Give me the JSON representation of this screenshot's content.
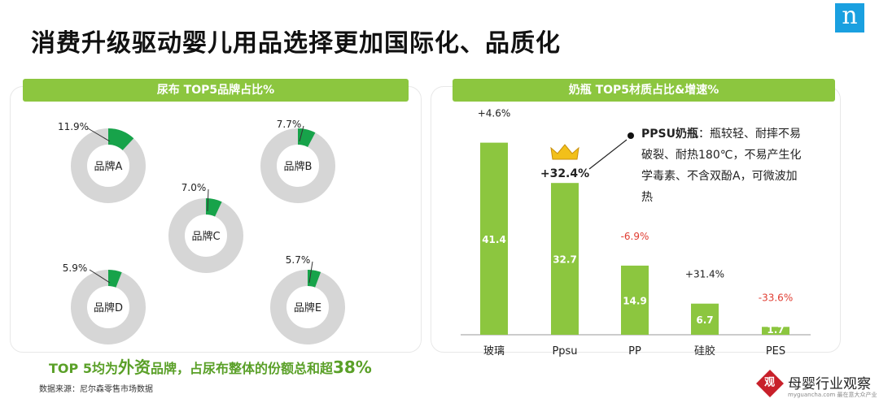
{
  "page": {
    "title": "消费升级驱动婴儿用品选择更加国际化、品质化",
    "logo_glyph": "n",
    "source": "数据来源：尼尔森零售市场数据",
    "footer_note": {
      "prefix": "TOP 5均为",
      "emph": "外资",
      "middle": "品牌，占尿布整体的份额总和超",
      "value": "38%"
    },
    "watermark": {
      "icon": "观",
      "text": "母婴行业观察",
      "sub": "myguancha.com  最在意大众产业"
    }
  },
  "callout": {
    "title": "PPSU奶瓶",
    "text": "：瓶较轻、耐摔不易破裂、耐热180℃，不易产生化学毒素、不含双酚A，可微波加热"
  },
  "colors": {
    "green": "#8cc63f",
    "dark_green": "#17a34a",
    "ring_gray": "#d6d6d6",
    "red": "#e03c31"
  },
  "chart_data": [
    {
      "type": "pie",
      "title": "尿布 TOP5品牌占比%",
      "series": [
        {
          "name": "品牌A",
          "value": 11.9,
          "label": "11.9%"
        },
        {
          "name": "品牌B",
          "value": 7.7,
          "label": "7.7%"
        },
        {
          "name": "品牌C",
          "value": 7.0,
          "label": "7.0%"
        },
        {
          "name": "品牌D",
          "value": 5.9,
          "label": "5.9%"
        },
        {
          "name": "品牌E",
          "value": 5.7,
          "label": "5.7%"
        }
      ]
    },
    {
      "type": "bar",
      "title": "奶瓶 TOP5材质占比&增速%",
      "categories": [
        "玻璃",
        "Ppsu",
        "PP",
        "硅胶",
        "PES"
      ],
      "values": [
        41.4,
        32.7,
        14.9,
        6.7,
        1.7
      ],
      "value_labels": [
        "41.4",
        "32.7",
        "14.9",
        "6.7",
        "1.7"
      ],
      "growth": [
        "+4.6%",
        "+32.4%",
        "-6.9%",
        "+31.4%",
        "-33.6%"
      ],
      "growth_negative": [
        false,
        false,
        true,
        false,
        true
      ],
      "highlight_index": 1,
      "ylim": [
        0,
        45
      ]
    }
  ]
}
